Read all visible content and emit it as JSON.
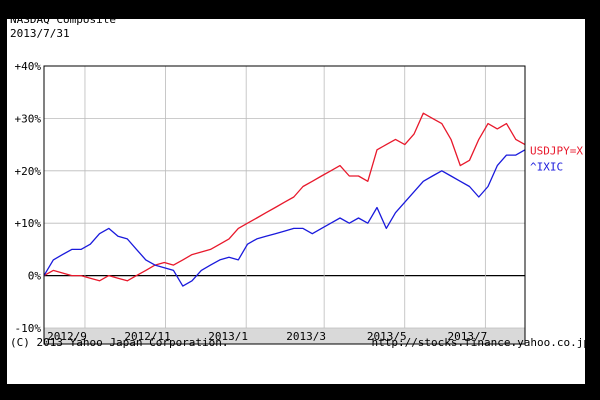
{
  "chart": {
    "title": "NASDAQ Composite",
    "date": "2013/7/31"
  },
  "footer": {
    "copyright": "(C) 2013 Yahoo Japan Corporation.",
    "url": "http://stocks.finance.yahoo.co.jp"
  },
  "chart_data": {
    "type": "line",
    "title": "NASDAQ Composite",
    "subtitle": "2013/7/31",
    "xlabel": "",
    "ylabel": "",
    "ylim": [
      -10,
      40
    ],
    "yticks": [
      -10,
      0,
      10,
      20,
      30,
      40
    ],
    "yticklabels": [
      "-10%",
      "0%",
      "+10%",
      "+20%",
      "+30%",
      "+40%"
    ],
    "xrange": [
      "2012-08-01",
      "2013-07-31"
    ],
    "xticks": [
      {
        "date": "2012-09-01",
        "label": "2012/9"
      },
      {
        "date": "2012-11-01",
        "label": "2012/11"
      },
      {
        "date": "2013-01-01",
        "label": "2013/1"
      },
      {
        "date": "2013-03-01",
        "label": "2013/3"
      },
      {
        "date": "2013-05-01",
        "label": "2013/5"
      },
      {
        "date": "2013-07-01",
        "label": "2013/7"
      }
    ],
    "grid": true,
    "legend": "right",
    "series": [
      {
        "name": "USDJPY=X",
        "color": "#e8192c",
        "points": [
          [
            "2012-08-01",
            0
          ],
          [
            "2012-08-08",
            1
          ],
          [
            "2012-08-15",
            0.5
          ],
          [
            "2012-08-22",
            0
          ],
          [
            "2012-08-29",
            0
          ],
          [
            "2012-09-05",
            -0.5
          ],
          [
            "2012-09-12",
            -1
          ],
          [
            "2012-09-19",
            0
          ],
          [
            "2012-09-26",
            -0.5
          ],
          [
            "2012-10-03",
            -1
          ],
          [
            "2012-10-10",
            0
          ],
          [
            "2012-10-17",
            1
          ],
          [
            "2012-10-24",
            2
          ],
          [
            "2012-10-31",
            2.5
          ],
          [
            "2012-11-07",
            2
          ],
          [
            "2012-11-14",
            3
          ],
          [
            "2012-11-21",
            4
          ],
          [
            "2012-11-28",
            4.5
          ],
          [
            "2012-12-05",
            5
          ],
          [
            "2012-12-12",
            6
          ],
          [
            "2012-12-19",
            7
          ],
          [
            "2012-12-26",
            9
          ],
          [
            "2013-01-02",
            10
          ],
          [
            "2013-01-09",
            11
          ],
          [
            "2013-01-16",
            12
          ],
          [
            "2013-01-23",
            13
          ],
          [
            "2013-01-30",
            14
          ],
          [
            "2013-02-06",
            15
          ],
          [
            "2013-02-13",
            17
          ],
          [
            "2013-02-20",
            18
          ],
          [
            "2013-02-27",
            19
          ],
          [
            "2013-03-06",
            20
          ],
          [
            "2013-03-13",
            21
          ],
          [
            "2013-03-20",
            19
          ],
          [
            "2013-03-27",
            19
          ],
          [
            "2013-04-03",
            18
          ],
          [
            "2013-04-10",
            24
          ],
          [
            "2013-04-17",
            25
          ],
          [
            "2013-04-24",
            26
          ],
          [
            "2013-05-01",
            25
          ],
          [
            "2013-05-08",
            27
          ],
          [
            "2013-05-15",
            31
          ],
          [
            "2013-05-22",
            30
          ],
          [
            "2013-05-29",
            29
          ],
          [
            "2013-06-05",
            26
          ],
          [
            "2013-06-12",
            21
          ],
          [
            "2013-06-19",
            22
          ],
          [
            "2013-06-26",
            26
          ],
          [
            "2013-07-03",
            29
          ],
          [
            "2013-07-10",
            28
          ],
          [
            "2013-07-17",
            29
          ],
          [
            "2013-07-24",
            26
          ],
          [
            "2013-07-31",
            25
          ]
        ]
      },
      {
        "name": "^IXIC",
        "color": "#1a1adc",
        "points": [
          [
            "2012-08-01",
            0
          ],
          [
            "2012-08-08",
            3
          ],
          [
            "2012-08-15",
            4
          ],
          [
            "2012-08-22",
            5
          ],
          [
            "2012-08-29",
            5
          ],
          [
            "2012-09-05",
            6
          ],
          [
            "2012-09-12",
            8
          ],
          [
            "2012-09-19",
            9
          ],
          [
            "2012-09-26",
            7.5
          ],
          [
            "2012-10-03",
            7
          ],
          [
            "2012-10-10",
            5
          ],
          [
            "2012-10-17",
            3
          ],
          [
            "2012-10-24",
            2
          ],
          [
            "2012-10-31",
            1.5
          ],
          [
            "2012-11-07",
            1
          ],
          [
            "2012-11-14",
            -2
          ],
          [
            "2012-11-21",
            -1
          ],
          [
            "2012-11-28",
            1
          ],
          [
            "2012-12-05",
            2
          ],
          [
            "2012-12-12",
            3
          ],
          [
            "2012-12-19",
            3.5
          ],
          [
            "2012-12-26",
            3
          ],
          [
            "2013-01-02",
            6
          ],
          [
            "2013-01-09",
            7
          ],
          [
            "2013-01-16",
            7.5
          ],
          [
            "2013-01-23",
            8
          ],
          [
            "2013-01-30",
            8.5
          ],
          [
            "2013-02-06",
            9
          ],
          [
            "2013-02-13",
            9
          ],
          [
            "2013-02-20",
            8
          ],
          [
            "2013-02-27",
            9
          ],
          [
            "2013-03-06",
            10
          ],
          [
            "2013-03-13",
            11
          ],
          [
            "2013-03-20",
            10
          ],
          [
            "2013-03-27",
            11
          ],
          [
            "2013-04-03",
            10
          ],
          [
            "2013-04-10",
            13
          ],
          [
            "2013-04-17",
            9
          ],
          [
            "2013-04-24",
            12
          ],
          [
            "2013-05-01",
            14
          ],
          [
            "2013-05-08",
            16
          ],
          [
            "2013-05-15",
            18
          ],
          [
            "2013-05-22",
            19
          ],
          [
            "2013-05-29",
            20
          ],
          [
            "2013-06-05",
            19
          ],
          [
            "2013-06-12",
            18
          ],
          [
            "2013-06-19",
            17
          ],
          [
            "2013-06-26",
            15
          ],
          [
            "2013-07-03",
            17
          ],
          [
            "2013-07-10",
            21
          ],
          [
            "2013-07-17",
            23
          ],
          [
            "2013-07-24",
            23
          ],
          [
            "2013-07-31",
            24
          ]
        ]
      }
    ]
  }
}
